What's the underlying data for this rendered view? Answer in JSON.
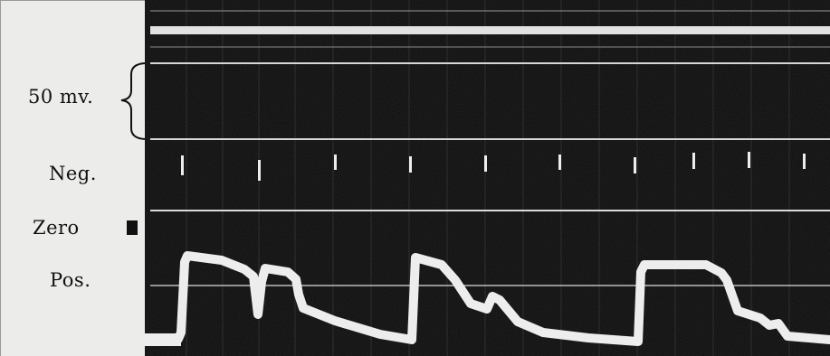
{
  "labels": {
    "scale": "50 mv.",
    "neg": "Neg.",
    "zero": "Zero",
    "pos": "Pos."
  },
  "colors": {
    "paper": "#ececea",
    "film": "#0c0c0c",
    "trace": "#ededed"
  }
}
